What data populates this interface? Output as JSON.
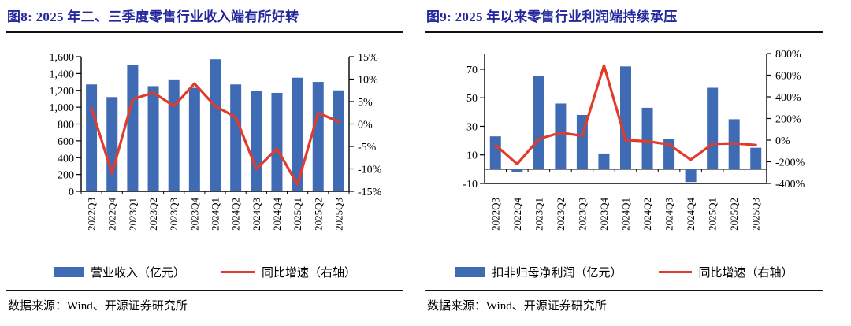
{
  "colors": {
    "bar": "#3E6BB4",
    "line": "#E13B2C",
    "title": "#23279B",
    "axis": "#000000"
  },
  "panels": [
    {
      "id": "figure8",
      "title": "图8:  2025 年二、三季度零售行业收入端有所好转",
      "source": "数据来源：Wind、开源证券研究所"
    },
    {
      "id": "figure9",
      "title": "图9:  2025 年以来零售行业利润端持续承压",
      "source": "数据来源：Wind、开源证券研究所"
    }
  ],
  "chart_data": [
    {
      "type": "bar+line",
      "title": "图8: 2025 年二、三季度零售行业收入端有所好转",
      "categories": [
        "2022Q3",
        "2022Q4",
        "2023Q1",
        "2023Q2",
        "2023Q3",
        "2023Q4",
        "2024Q1",
        "2024Q2",
        "2024Q3",
        "2024Q4",
        "2025Q1",
        "2025Q2",
        "2025Q3"
      ],
      "series": [
        {
          "name": "营业收入（亿元）",
          "type": "bar",
          "axis": "left",
          "values": [
            1270,
            1120,
            1500,
            1250,
            1330,
            1230,
            1570,
            1270,
            1190,
            1170,
            1350,
            1300,
            1200
          ]
        },
        {
          "name": "同比增速（右轴）",
          "type": "line",
          "axis": "right",
          "unit": "%",
          "values": [
            3.5,
            -11,
            5.5,
            7,
            4,
            9,
            4,
            1.5,
            -10,
            -5.5,
            -13.5,
            2.5,
            0.5
          ]
        }
      ],
      "left_axis": {
        "min": 0,
        "max": 1600,
        "step": 200,
        "frame_min": 0,
        "frame_max": 1600,
        "tick_labels": [
          "0",
          "200",
          "400",
          "600",
          "800",
          "1,000",
          "1,200",
          "1,400",
          "1,600"
        ]
      },
      "right_axis": {
        "min": -15,
        "max": 15,
        "step": 5,
        "tick_labels": [
          "-15%",
          "-10%",
          "-5%",
          "0%",
          "5%",
          "10%",
          "15%"
        ]
      },
      "legend_position": "bottom",
      "grid": false
    },
    {
      "type": "bar+line",
      "title": "图9: 2025 年以来零售行业利润端持续承压",
      "categories": [
        "2022Q3",
        "2022Q4",
        "2023Q1",
        "2023Q2",
        "2023Q3",
        "2023Q4",
        "2024Q1",
        "2024Q2",
        "2024Q3",
        "2024Q4",
        "2025Q1",
        "2025Q2",
        "2025Q3"
      ],
      "series": [
        {
          "name": "扣非归母净利润（亿元）",
          "type": "bar",
          "axis": "left",
          "values": [
            23,
            -2,
            65,
            46,
            38,
            11,
            72,
            43,
            21,
            -9,
            57,
            35,
            15
          ]
        },
        {
          "name": "同比增速（右轴）",
          "type": "line",
          "axis": "right",
          "unit": "%",
          "values": [
            -45,
            -220,
            10,
            70,
            40,
            690,
            0,
            -10,
            -40,
            -180,
            -35,
            -30,
            -45
          ]
        }
      ],
      "left_axis": {
        "min": -10,
        "max": 70,
        "step": 20,
        "frame_min": -10,
        "frame_max": 81,
        "tick_labels": [
          "-10",
          "10",
          "30",
          "50",
          "70"
        ]
      },
      "right_axis": {
        "min": -400,
        "max": 800,
        "step": 200,
        "tick_labels": [
          "-400%",
          "-200%",
          "0%",
          "200%",
          "400%",
          "600%",
          "800%"
        ]
      },
      "legend_position": "bottom",
      "grid": false
    }
  ]
}
